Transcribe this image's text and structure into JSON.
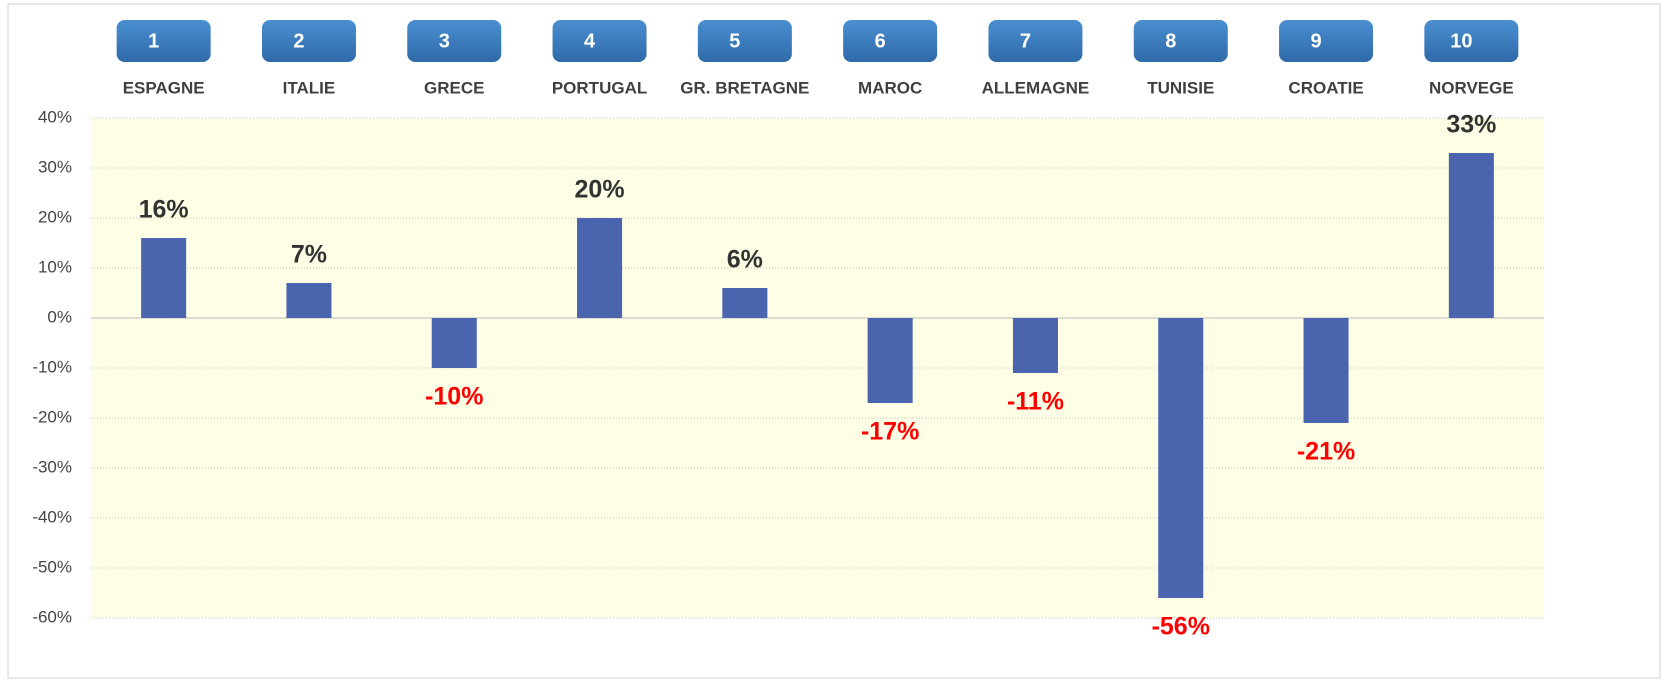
{
  "chart_data": {
    "type": "bar",
    "ranks": [
      "1",
      "2",
      "3",
      "4",
      "5",
      "6",
      "7",
      "8",
      "9",
      "10"
    ],
    "categories": [
      "ESPAGNE",
      "ITALIE",
      "GRECE",
      "PORTUGAL",
      "GR. BRETAGNE",
      "MAROC",
      "ALLEMAGNE",
      "TUNISIE",
      "CROATIE",
      "NORVEGE"
    ],
    "values": [
      16,
      7,
      -10,
      20,
      6,
      -17,
      -11,
      -56,
      -21,
      33
    ],
    "value_labels": [
      "16%",
      "7%",
      "-10%",
      "20%",
      "6%",
      "-17%",
      "-11%",
      "-56%",
      "-21%",
      "33%"
    ],
    "color": "#4a65ad",
    "positive_label_color": "#333333",
    "negative_label_color": "#ff0000",
    "ylim": [
      -60,
      40
    ],
    "yticks": [
      {
        "value": -60,
        "label": "-60%"
      },
      {
        "value": -50,
        "label": "-50%"
      },
      {
        "value": -40,
        "label": "-40%"
      },
      {
        "value": -30,
        "label": "-30%"
      },
      {
        "value": -20,
        "label": "-20%"
      },
      {
        "value": -10,
        "label": "-10%"
      },
      {
        "value": 0,
        "label": "0%"
      },
      {
        "value": 10,
        "label": "10%"
      },
      {
        "value": 20,
        "label": "20%"
      },
      {
        "value": 30,
        "label": "30%"
      },
      {
        "value": 40,
        "label": "40%"
      }
    ],
    "grid": true
  }
}
